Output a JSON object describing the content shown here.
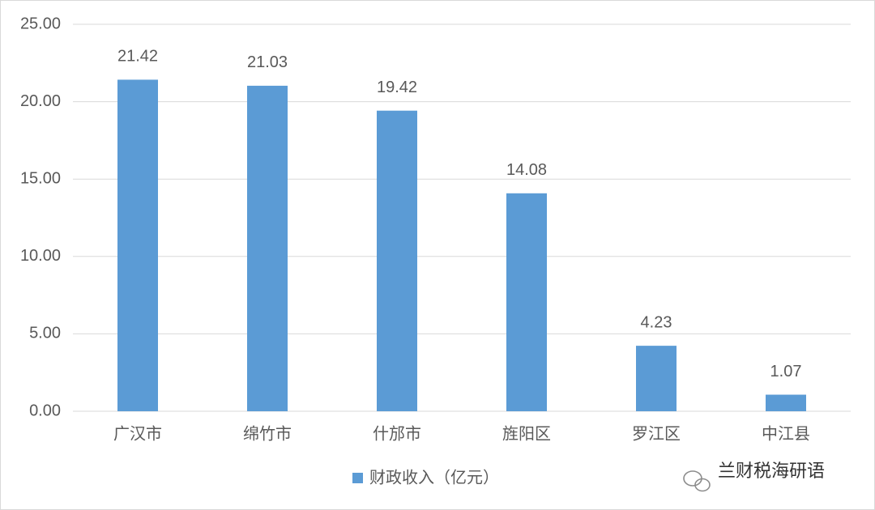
{
  "chart_data": {
    "type": "bar",
    "categories": [
      "广汉市",
      "绵竹市",
      "什邡市",
      "旌阳区",
      "罗江区",
      "中江县"
    ],
    "series": [
      {
        "name": "财政收入（亿元）",
        "color": "#5b9bd5",
        "values": [
          21.42,
          21.03,
          19.42,
          14.08,
          4.23,
          1.07
        ]
      }
    ],
    "ylim": [
      0,
      25
    ],
    "yticks": [
      {
        "value": 0,
        "label": "0.00"
      },
      {
        "value": 5,
        "label": "5.00"
      },
      {
        "value": 10,
        "label": "10.00"
      },
      {
        "value": 15,
        "label": "15.00"
      },
      {
        "value": 20,
        "label": "20.00"
      },
      {
        "value": 25,
        "label": "25.00"
      }
    ],
    "grid": true,
    "legend": "bottom",
    "watermark": "兰财税海研语"
  }
}
